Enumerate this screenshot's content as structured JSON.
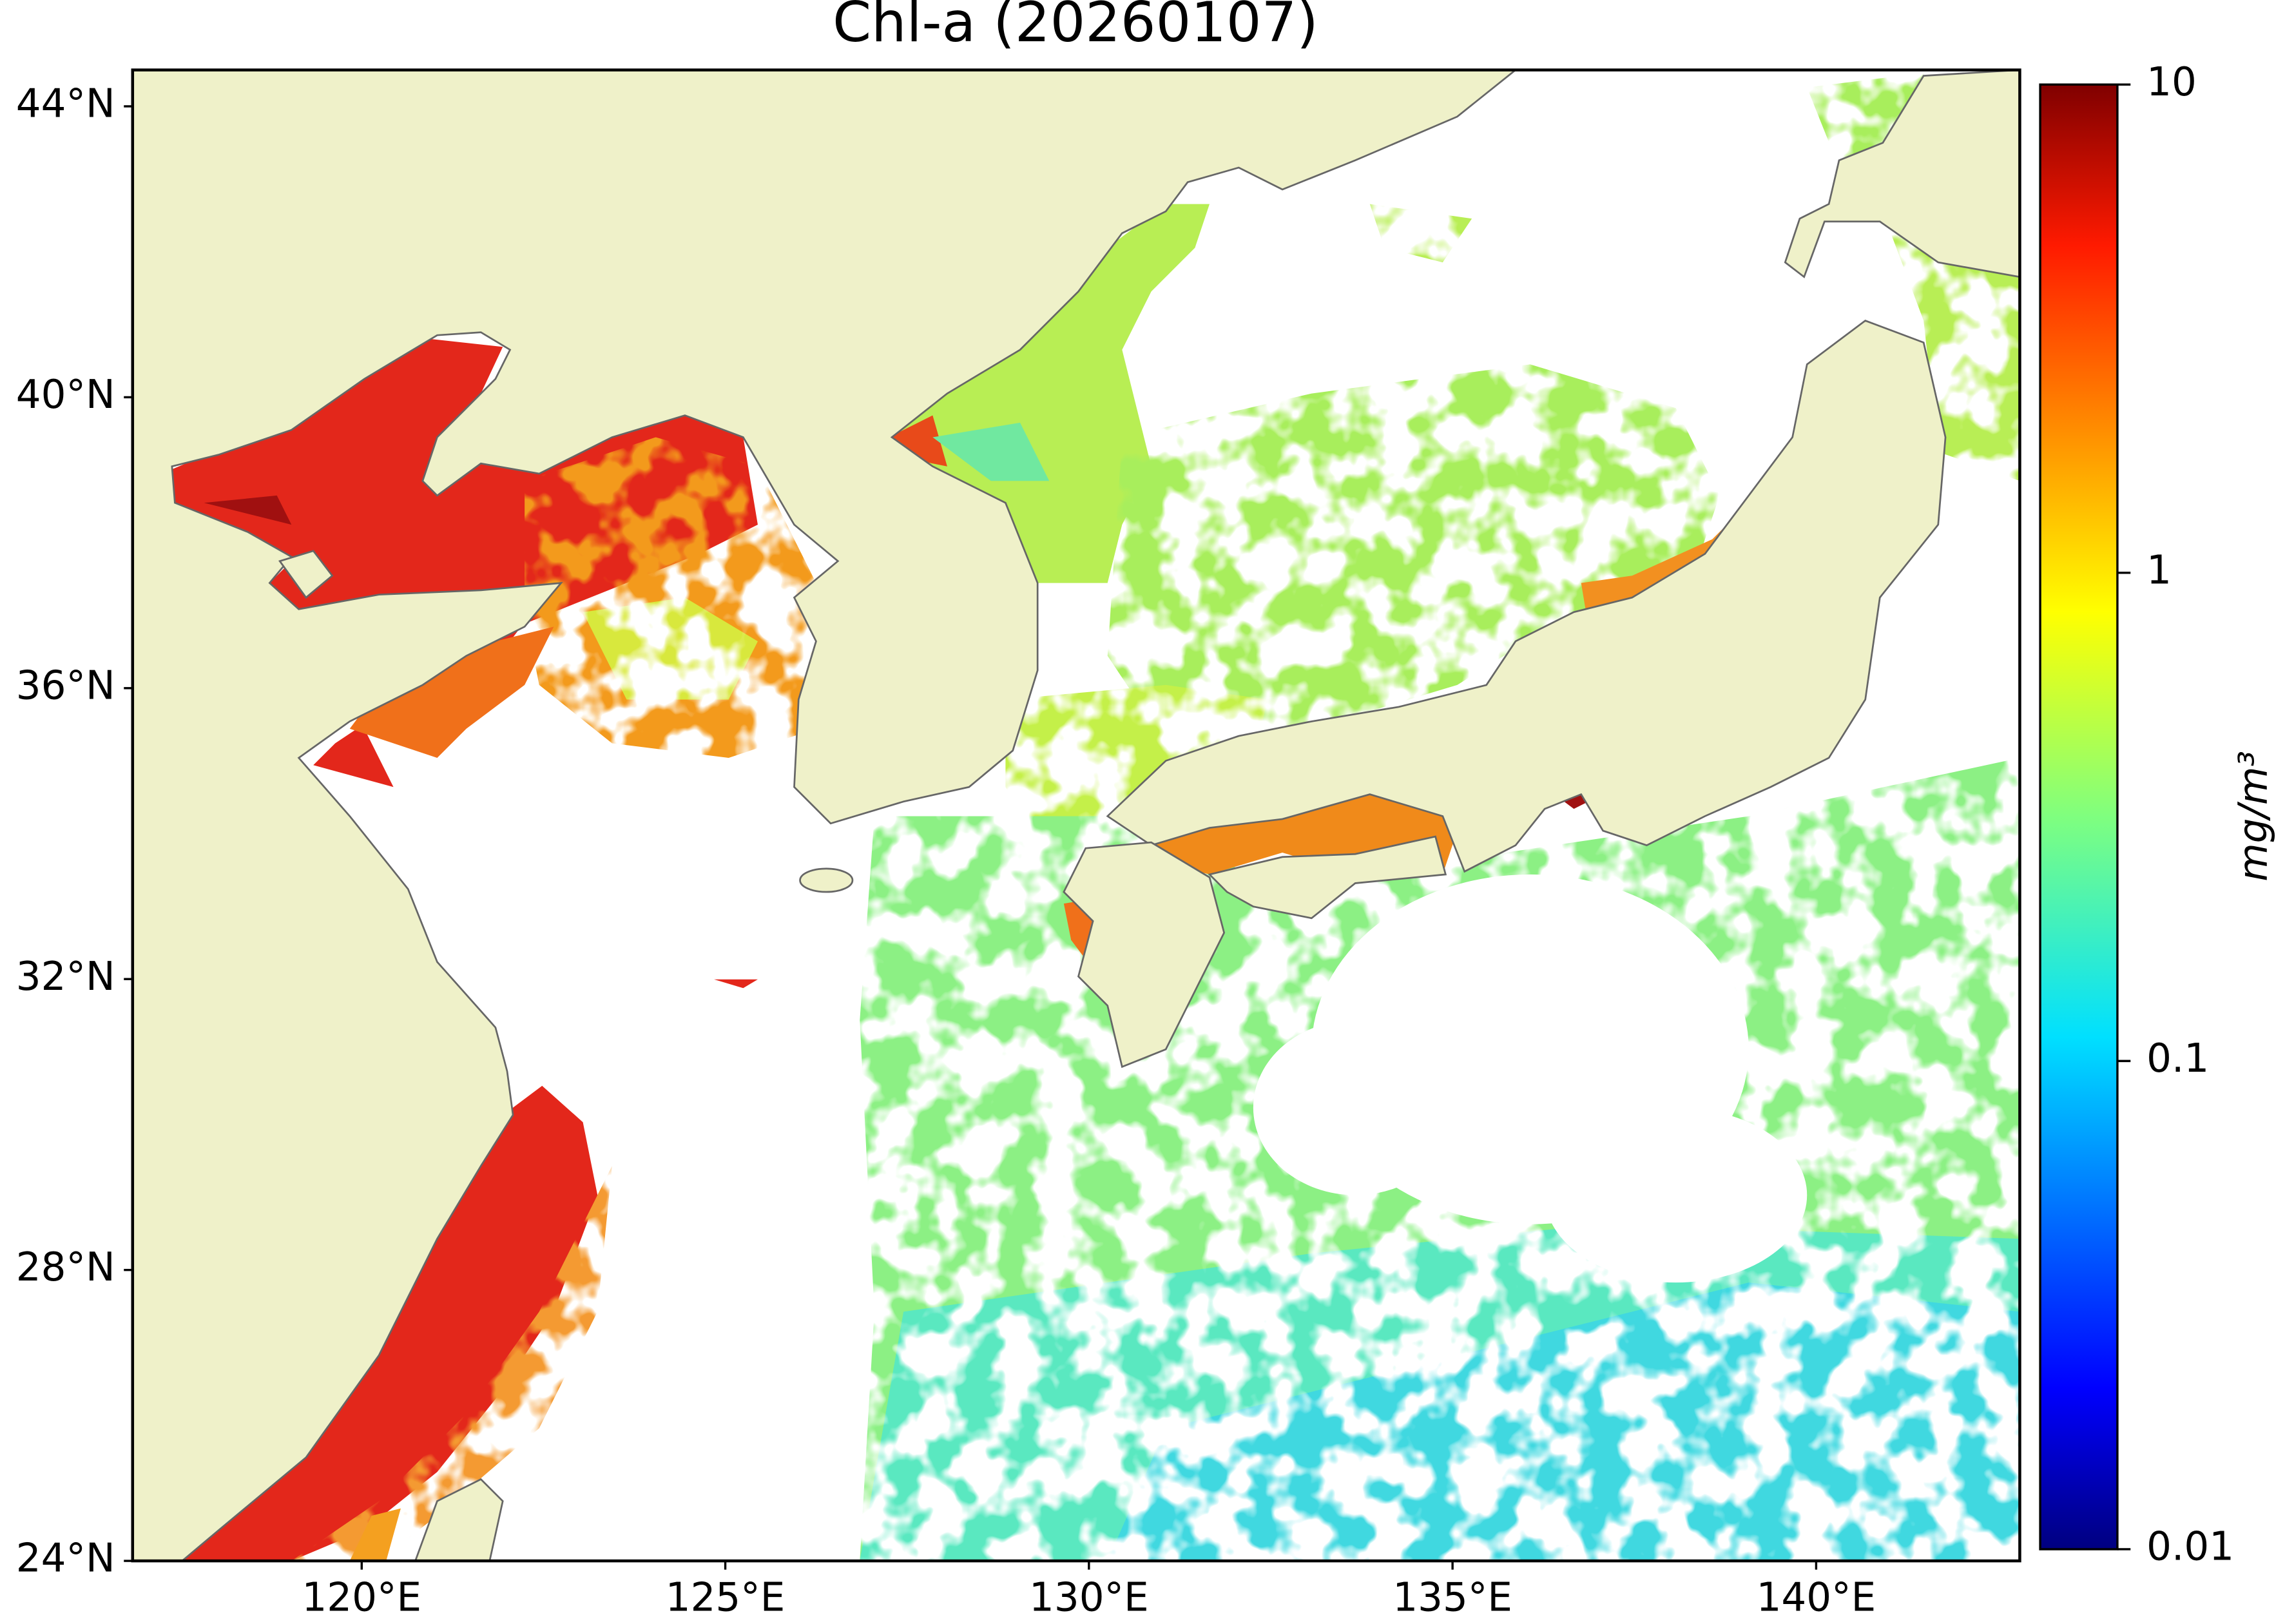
{
  "chart_data": {
    "type": "map",
    "title": "Chl-a (20260107)",
    "xlim": [
      116.85,
      142.8
    ],
    "ylim": [
      24,
      44.5
    ],
    "xticks": [
      {
        "value": 120,
        "label": "120°E"
      },
      {
        "value": 125,
        "label": "125°E"
      },
      {
        "value": 130,
        "label": "130°E"
      },
      {
        "value": 135,
        "label": "135°E"
      },
      {
        "value": 140,
        "label": "140°E"
      }
    ],
    "yticks": [
      {
        "value": 24,
        "label": "24°N"
      },
      {
        "value": 28,
        "label": "28°N"
      },
      {
        "value": 32,
        "label": "32°N"
      },
      {
        "value": 36,
        "label": "36°N"
      },
      {
        "value": 40,
        "label": "40°N"
      },
      {
        "value": 44,
        "label": "44°N"
      }
    ],
    "colorbar": {
      "label": "mg/m³",
      "scale": "log",
      "lim": [
        0.01,
        10
      ],
      "ticks": [
        0.01,
        0.1,
        1,
        10
      ]
    }
  }
}
